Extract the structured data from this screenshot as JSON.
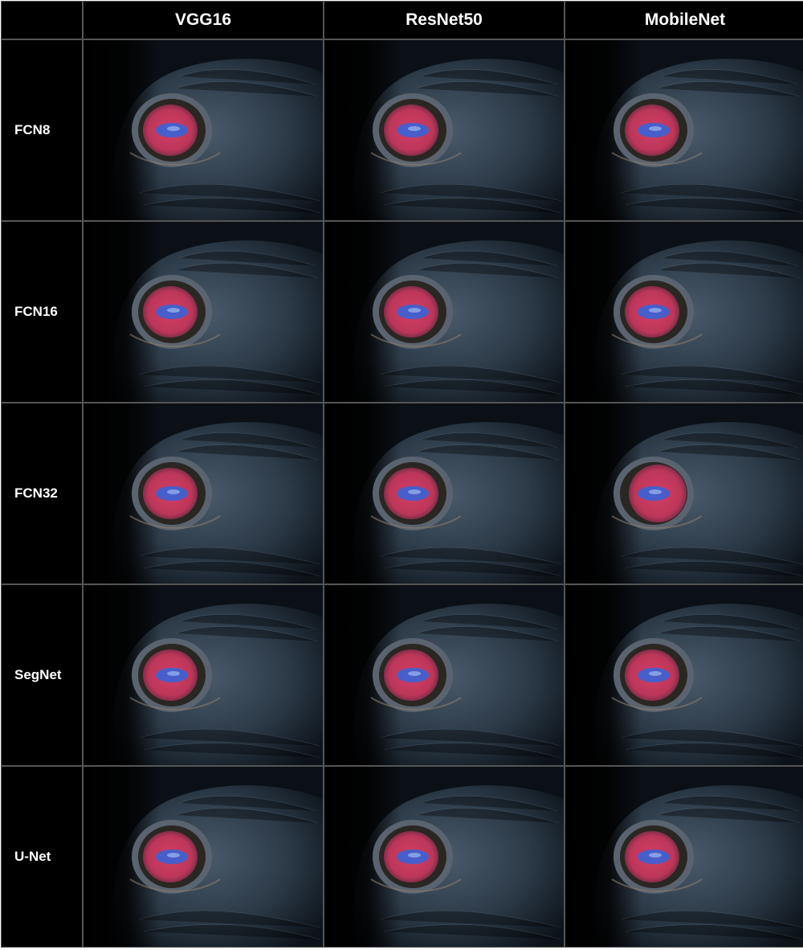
{
  "columns": [
    "VGG16",
    "ResNet50",
    "MobileNet"
  ],
  "rows": [
    "FCN8",
    "FCN16",
    "FCN32",
    "SegNet",
    "U-Net"
  ],
  "colors": {
    "background": "#ffffff",
    "cell_fill": "#000000",
    "header_text": "#ffffff",
    "skin": "#2a3a4a",
    "overlay_red": "#e0406a",
    "overlay_blue": "#4060d0"
  },
  "cells": [
    [
      {
        "overlay": "center-pupil"
      },
      {
        "overlay": "center-pupil"
      },
      {
        "overlay": "center-pupil"
      }
    ],
    [
      {
        "overlay": "center-pupil"
      },
      {
        "overlay": "center-pupil"
      },
      {
        "overlay": "center-pupil"
      }
    ],
    [
      {
        "overlay": "center-pupil"
      },
      {
        "overlay": "center-pupil"
      },
      {
        "overlay": "oversegmented"
      }
    ],
    [
      {
        "overlay": "center-pupil"
      },
      {
        "overlay": "center-pupil"
      },
      {
        "overlay": "center-pupil"
      }
    ],
    [
      {
        "overlay": "center-pupil"
      },
      {
        "overlay": "center-pupil"
      },
      {
        "overlay": "center-pupil"
      }
    ]
  ]
}
